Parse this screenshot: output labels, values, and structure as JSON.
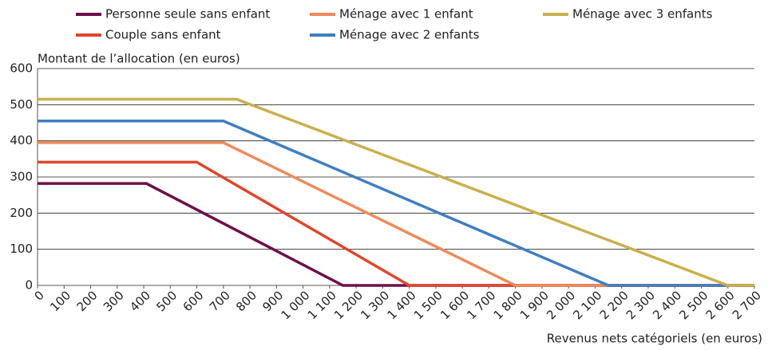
{
  "chart_data": {
    "type": "line",
    "y_label": "Montant de l’allocation (en euros)",
    "x_label": "Revenus nets catégoriels (en euros)",
    "xlim": [
      0,
      2700
    ],
    "ylim": [
      0,
      600
    ],
    "yticks": [
      0,
      100,
      200,
      300,
      400,
      500,
      600
    ],
    "xticks": [
      0,
      100,
      200,
      300,
      400,
      500,
      600,
      700,
      800,
      900,
      {
        "value": 1000,
        "label": "1 000"
      },
      {
        "value": 1100,
        "label": "1 100"
      },
      {
        "value": 1200,
        "label": "1 200"
      },
      {
        "value": 1300,
        "label": "1 300"
      },
      {
        "value": 1400,
        "label": "1 400"
      },
      {
        "value": 1500,
        "label": "1 500"
      },
      {
        "value": 1600,
        "label": "1 600"
      },
      {
        "value": 1700,
        "label": "1 700"
      },
      {
        "value": 1800,
        "label": "1 800"
      },
      {
        "value": 1900,
        "label": "1 900"
      },
      {
        "value": 2000,
        "label": "2 000"
      },
      {
        "value": 2100,
        "label": "2 100"
      },
      {
        "value": 2200,
        "label": "2 200"
      },
      {
        "value": 2300,
        "label": "2 300"
      },
      {
        "value": 2400,
        "label": "2 400"
      },
      {
        "value": 2500,
        "label": "2 500"
      },
      {
        "value": 2600,
        "label": "2 600"
      },
      {
        "value": 2700,
        "label": "2 700"
      }
    ],
    "grid": true,
    "series": [
      {
        "name": "Personne seule sans enfant",
        "color": "#6e1048",
        "x": [
          0,
          410,
          1150,
          2700
        ],
        "values": [
          282,
          282,
          0,
          0
        ]
      },
      {
        "name": "Couple sans enfant",
        "color": "#e0462b",
        "x": [
          0,
          600,
          1400,
          2700
        ],
        "values": [
          341,
          341,
          0,
          0
        ]
      },
      {
        "name": "Ménage avec 1 enfant",
        "color": "#ef8a5a",
        "x": [
          0,
          700,
          1800,
          2700
        ],
        "values": [
          395,
          395,
          0,
          0
        ]
      },
      {
        "name": "Ménage avec 2 enfants",
        "color": "#3f7fc1",
        "x": [
          0,
          700,
          2150,
          2700
        ],
        "values": [
          455,
          455,
          0,
          0
        ]
      },
      {
        "name": "Ménage avec 3 enfants",
        "color": "#c9b04c",
        "x": [
          0,
          750,
          2600,
          2700
        ],
        "values": [
          515,
          515,
          0,
          0
        ]
      }
    ]
  }
}
